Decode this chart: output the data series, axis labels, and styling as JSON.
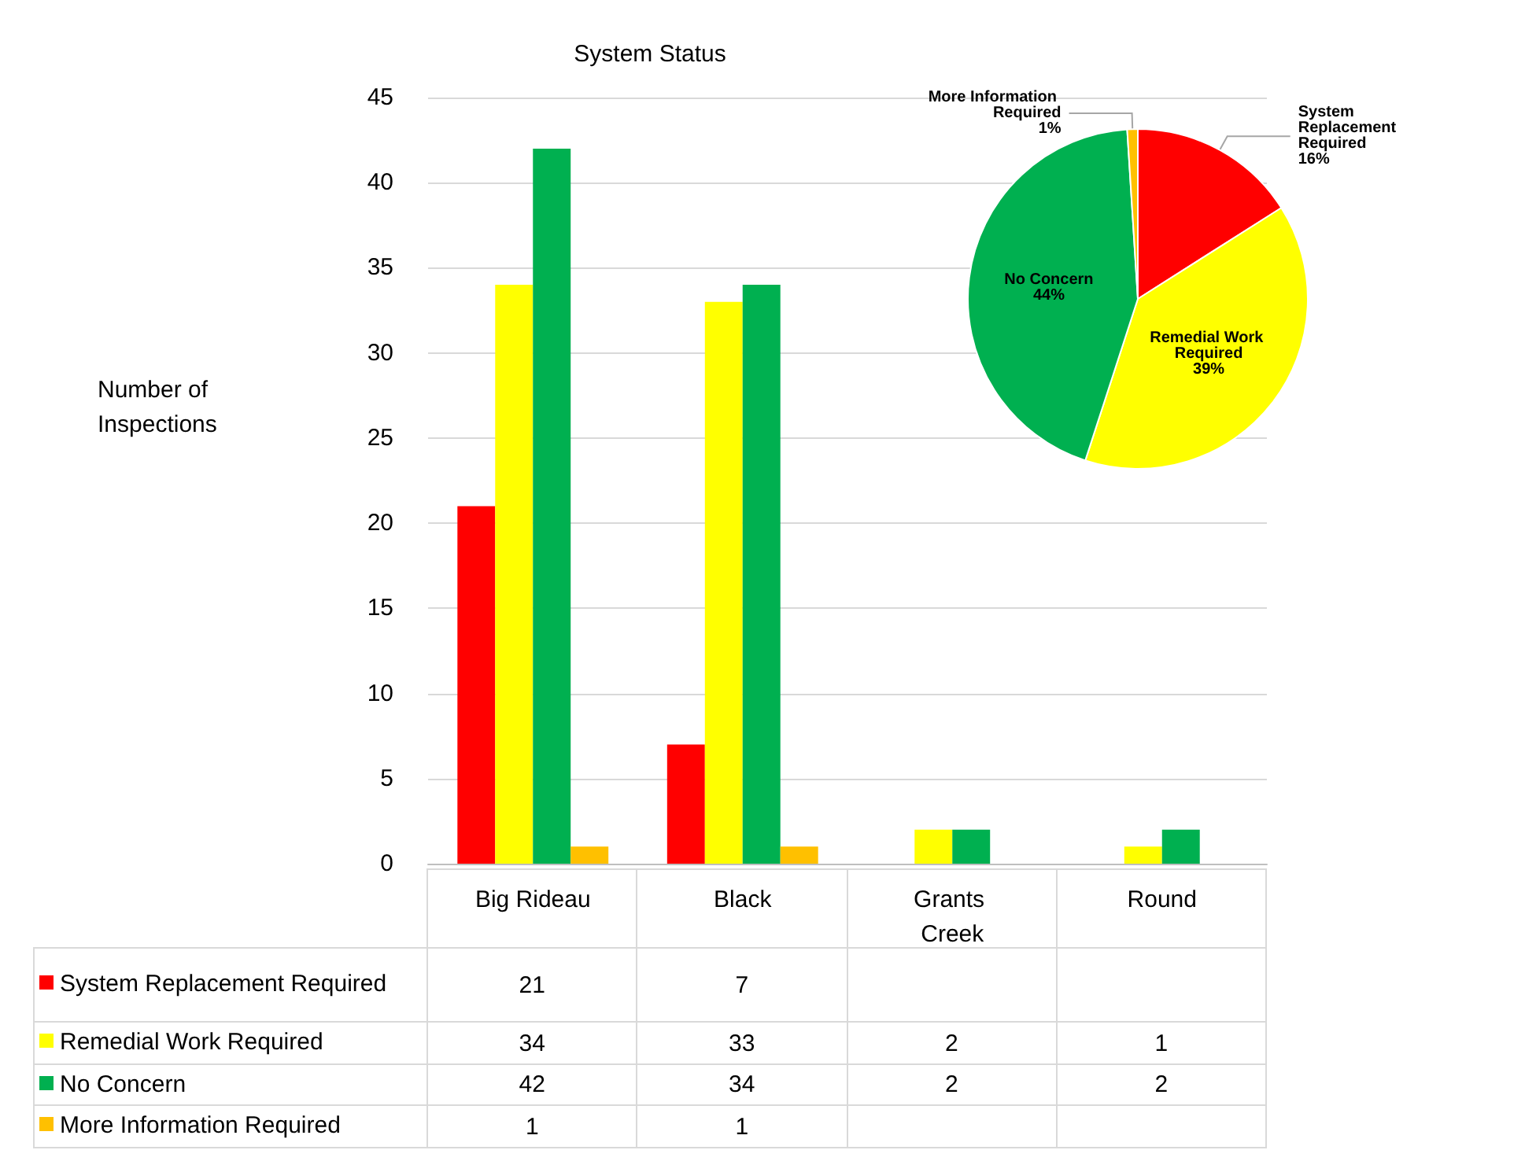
{
  "chart_data": [
    {
      "type": "bar",
      "title": "System Status",
      "ylabel": "Number of Inspections",
      "categories": [
        "Big Rideau",
        "Black",
        "Grants Creek",
        "Round"
      ],
      "series": [
        {
          "name": "System Replacement Required",
          "color": "#ff0000",
          "values": [
            21,
            7,
            null,
            null
          ]
        },
        {
          "name": "Remedial Work Required",
          "color": "#ffff00",
          "values": [
            34,
            33,
            2,
            1
          ]
        },
        {
          "name": "No Concern",
          "color": "#00b050",
          "values": [
            42,
            34,
            2,
            2
          ]
        },
        {
          "name": "More Information Required",
          "color": "#ffc000",
          "values": [
            1,
            1,
            null,
            null
          ]
        }
      ],
      "ylim": [
        0,
        45
      ],
      "yticks": [
        0,
        5,
        10,
        15,
        20,
        25,
        30,
        35,
        40,
        45
      ],
      "grid": "y",
      "legend": "bottom",
      "data_labels": true
    },
    {
      "type": "pie",
      "categories": [
        "System Replacement Required",
        "Remedial Work Required",
        "No Concern",
        "More Information Required"
      ],
      "values": [
        16,
        39,
        44,
        1
      ],
      "colors": [
        "#ff0000",
        "#ffff00",
        "#00b050",
        "#ffc000"
      ],
      "value_labels": [
        "16%",
        "39%",
        "44%",
        "1%"
      ]
    }
  ]
}
